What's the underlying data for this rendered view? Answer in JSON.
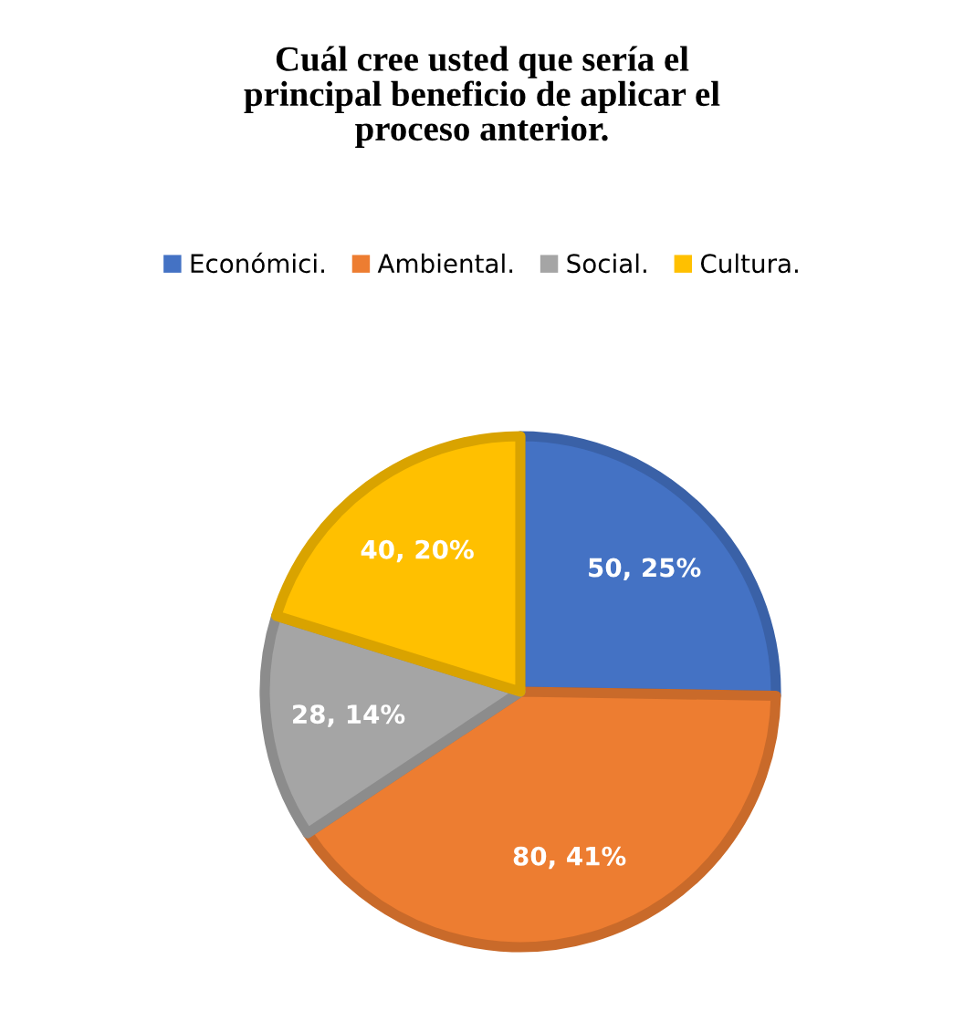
{
  "chart_data": {
    "type": "pie",
    "title": "Cuál cree usted que sería el\nprincipal beneficio de aplicar el\nproceso anterior.",
    "categories": [
      "Económici.",
      "Ambiental.",
      "Social.",
      "Cultura."
    ],
    "values": [
      50,
      80,
      28,
      40
    ],
    "colors": [
      "#4472c4",
      "#ed7d31",
      "#a5a5a5",
      "#ffc000"
    ],
    "value_labels": [
      "50, 25%",
      "80, 41%",
      "28, 14%",
      "40, 20%"
    ],
    "legend": "top"
  }
}
